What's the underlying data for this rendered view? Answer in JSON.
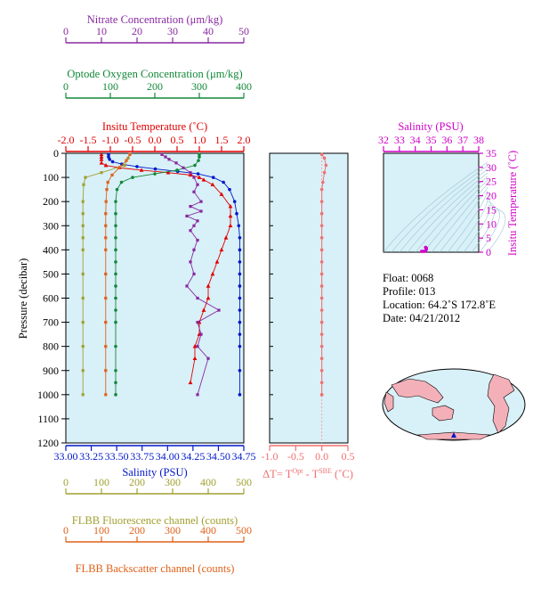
{
  "colors": {
    "panel_bg": "#d8f0f8",
    "temperature": "#e00000",
    "salinity": "#0018c8",
    "oxygen": "#108838",
    "nitrate": "#8828a0",
    "fluorescence": "#a0a030",
    "backscatter": "#e06018",
    "delta_t": "#f07070",
    "ts": "#d000c8",
    "land": "#f4b0b8",
    "ocean": "#d8f0f8"
  },
  "axes": {
    "nitrate": {
      "label": "Nitrate Concentration (μm/kg)",
      "ticks": [
        "0",
        "10",
        "20",
        "30",
        "40",
        "50"
      ],
      "range": [
        0,
        50
      ]
    },
    "oxygen": {
      "label": "Optode Oxygen Concentration (μm/kg)",
      "ticks": [
        "0",
        "100",
        "200",
        "300",
        "400"
      ],
      "range": [
        0,
        400
      ]
    },
    "temperature": {
      "label": "Insitu Temperature (˚C)",
      "ticks": [
        "-2.0",
        "-1.5",
        "-1.0",
        "-0.5",
        "0.0",
        "0.5",
        "1.0",
        "1.5",
        "2.0"
      ],
      "range": [
        -2.0,
        2.0
      ]
    },
    "salinity": {
      "label": "Salinity (PSU)",
      "ticks": [
        "33.00",
        "33.25",
        "33.50",
        "33.75",
        "34.00",
        "34.25",
        "34.50",
        "34.75"
      ],
      "range": [
        33.0,
        34.75
      ]
    },
    "pressure": {
      "label": "Pressure (decibar)",
      "ticks": [
        "0",
        "100",
        "200",
        "300",
        "400",
        "500",
        "600",
        "700",
        "800",
        "900",
        "1000",
        "1100",
        "1200"
      ],
      "range": [
        0,
        1200
      ]
    },
    "fluorescence": {
      "label": "FLBB Fluorescence channel (counts)",
      "ticks": [
        "0",
        "100",
        "200",
        "300",
        "400",
        "500"
      ],
      "range": [
        0,
        500
      ]
    },
    "backscatter": {
      "label": "FLBB Backscatter channel (counts)",
      "ticks": [
        "0",
        "100",
        "200",
        "300",
        "400",
        "500"
      ],
      "range": [
        0,
        500
      ]
    },
    "delta_t": {
      "label": "ΔT= T",
      "sup1": "Opt",
      "mid": " - T",
      "sup2": "SBE",
      "unit": " (˚C)",
      "ticks": [
        "-1.0",
        "-0.5",
        "0.0",
        "0.5"
      ],
      "range": [
        -1.0,
        0.5
      ]
    },
    "ts_salinity": {
      "label": "Salinity (PSU)",
      "ticks": [
        "32",
        "33",
        "34",
        "35",
        "36",
        "37",
        "38"
      ],
      "range": [
        32,
        38
      ]
    },
    "ts_temperature": {
      "label": "Insitu Temperature (˚C)",
      "ticks": [
        "0",
        "5",
        "10",
        "15",
        "20",
        "25",
        "30",
        "35"
      ],
      "range": [
        0,
        35
      ]
    }
  },
  "info": {
    "float": "Float:  0068",
    "profile": "Profile:  013",
    "location": "Location:  64.2˚S  172.8˚E",
    "date": "Date:  04/21/2012"
  },
  "chart_data": [
    {
      "type": "line",
      "series": [
        {
          "name": "Temperature",
          "x": [
            -1.2,
            -1.2,
            -1.2,
            -1.2,
            -1.1,
            -0.8,
            -0.3,
            0.3,
            0.8,
            1.0,
            1.1,
            1.3,
            1.5,
            1.7,
            1.7,
            1.7,
            1.6,
            1.5,
            1.4,
            1.3,
            1.2,
            1.2,
            1.1,
            1.0,
            1.0,
            0.9,
            0.9,
            0.8
          ],
          "y": [
            5,
            15,
            25,
            40,
            50,
            60,
            70,
            80,
            90,
            100,
            110,
            130,
            170,
            220,
            260,
            300,
            350,
            400,
            450,
            500,
            550,
            600,
            650,
            700,
            750,
            800,
            850,
            950
          ]
        },
        {
          "name": "Salinity",
          "x": [
            33.42,
            33.42,
            33.43,
            33.46,
            33.55,
            33.7,
            33.88,
            34.1,
            34.3,
            34.45,
            34.55,
            34.61,
            34.66,
            34.68,
            34.7,
            34.71,
            34.71,
            34.71,
            34.71,
            34.71,
            34.71,
            34.71,
            34.71,
            34.71,
            34.71,
            34.71,
            34.71
          ],
          "y": [
            5,
            15,
            25,
            35,
            45,
            55,
            65,
            75,
            85,
            100,
            120,
            150,
            200,
            250,
            300,
            350,
            400,
            450,
            500,
            550,
            600,
            650,
            700,
            750,
            800,
            900,
            1000
          ]
        },
        {
          "name": "Oxygen",
          "x": [
            300,
            300,
            298,
            290,
            250,
            200,
            150,
            125,
            115,
            112,
            112,
            112,
            112,
            112,
            112,
            112,
            112,
            112,
            112,
            112,
            112,
            112,
            112,
            112
          ],
          "y": [
            5,
            15,
            30,
            50,
            70,
            85,
            100,
            120,
            150,
            200,
            250,
            300,
            350,
            400,
            450,
            500,
            550,
            600,
            650,
            700,
            800,
            900,
            950,
            1000
          ]
        },
        {
          "name": "Nitrate",
          "x": [
            27,
            28,
            29,
            31,
            33,
            35,
            36,
            37,
            36,
            38,
            35,
            38,
            34,
            37,
            36,
            35,
            37,
            36,
            35,
            36,
            34,
            37,
            43,
            37,
            38,
            37,
            40,
            37
          ],
          "y": [
            5,
            15,
            25,
            40,
            60,
            80,
            100,
            130,
            160,
            200,
            220,
            240,
            260,
            280,
            300,
            320,
            360,
            400,
            450,
            500,
            550,
            600,
            650,
            700,
            750,
            800,
            850,
            1000
          ]
        },
        {
          "name": "Fluorescence",
          "x": [
            180,
            175,
            165,
            100,
            55,
            50,
            48,
            48,
            48,
            48,
            48,
            48,
            48,
            48,
            48,
            48,
            48
          ],
          "y": [
            5,
            20,
            50,
            80,
            100,
            130,
            200,
            250,
            300,
            350,
            400,
            500,
            600,
            700,
            800,
            900,
            1000
          ]
        },
        {
          "name": "Backscatter",
          "x": [
            180,
            170,
            150,
            130,
            118,
            115,
            113,
            112,
            112,
            112,
            112,
            112,
            112,
            112,
            112,
            112,
            112
          ],
          "y": [
            5,
            30,
            60,
            90,
            120,
            150,
            200,
            250,
            300,
            350,
            400,
            500,
            600,
            700,
            800,
            900,
            1000
          ]
        }
      ]
    },
    {
      "type": "line",
      "series": [
        {
          "name": "ΔT",
          "x": [
            0.0,
            0.05,
            0.08,
            0.05,
            0.02,
            0.0,
            0.0,
            0.0,
            0.0,
            0.0,
            0.0,
            0.0,
            0.0,
            0.0,
            0.0,
            0.0,
            0.0,
            0.0,
            0.0,
            0.0,
            0.0,
            0.0,
            0.0,
            0.0
          ],
          "y": [
            5,
            20,
            50,
            80,
            120,
            150,
            200,
            250,
            300,
            350,
            400,
            450,
            500,
            550,
            600,
            650,
            700,
            750,
            800,
            850,
            900,
            950,
            1000,
            1000
          ]
        }
      ]
    },
    {
      "type": "scatter",
      "series": [
        {
          "name": "T-S",
          "x": [
            34.4,
            34.5,
            34.6,
            34.65,
            34.7,
            34.7,
            34.65
          ],
          "y": [
            -1.2,
            -0.8,
            -0.2,
            0.5,
            1.0,
            1.5,
            1.7
          ]
        }
      ]
    }
  ]
}
